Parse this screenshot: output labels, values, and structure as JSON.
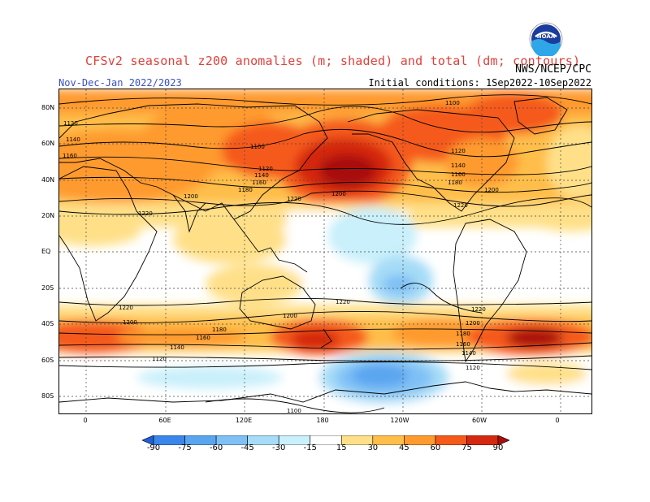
{
  "header": {
    "title": "CFSv2 seasonal z200 anomalies (m; shaded) and total (dm; contours)",
    "period": "Nov-Dec-Jan 2022/2023",
    "agency": "NWS/NCEP/CPC",
    "initial_conditions": "Initial conditions: 1Sep2022-10Sep2022",
    "logo_text": "NOAA"
  },
  "axes": {
    "lat_labels": [
      "80N",
      "60N",
      "40N",
      "20N",
      "EQ",
      "20S",
      "40S",
      "60S",
      "80S"
    ],
    "lon_labels": [
      "0",
      "60E",
      "120E",
      "180",
      "120W",
      "60W",
      "0"
    ]
  },
  "contour_labels": [
    "1100",
    "1120",
    "1140",
    "1160",
    "1180",
    "1200",
    "1220"
  ],
  "colorbar": {
    "labels": [
      "-90",
      "-75",
      "-60",
      "-45",
      "-30",
      "-15",
      "15",
      "30",
      "45",
      "60",
      "75",
      "90"
    ],
    "colors": [
      "#1f5fd9",
      "#3b86eb",
      "#5aa5f0",
      "#7fc0f5",
      "#a6dcf7",
      "#c9f0fb",
      "#ffffff",
      "#ffe089",
      "#ffbe4a",
      "#ff9a2e",
      "#f55a1a",
      "#d42810",
      "#a80e0a"
    ]
  }
}
